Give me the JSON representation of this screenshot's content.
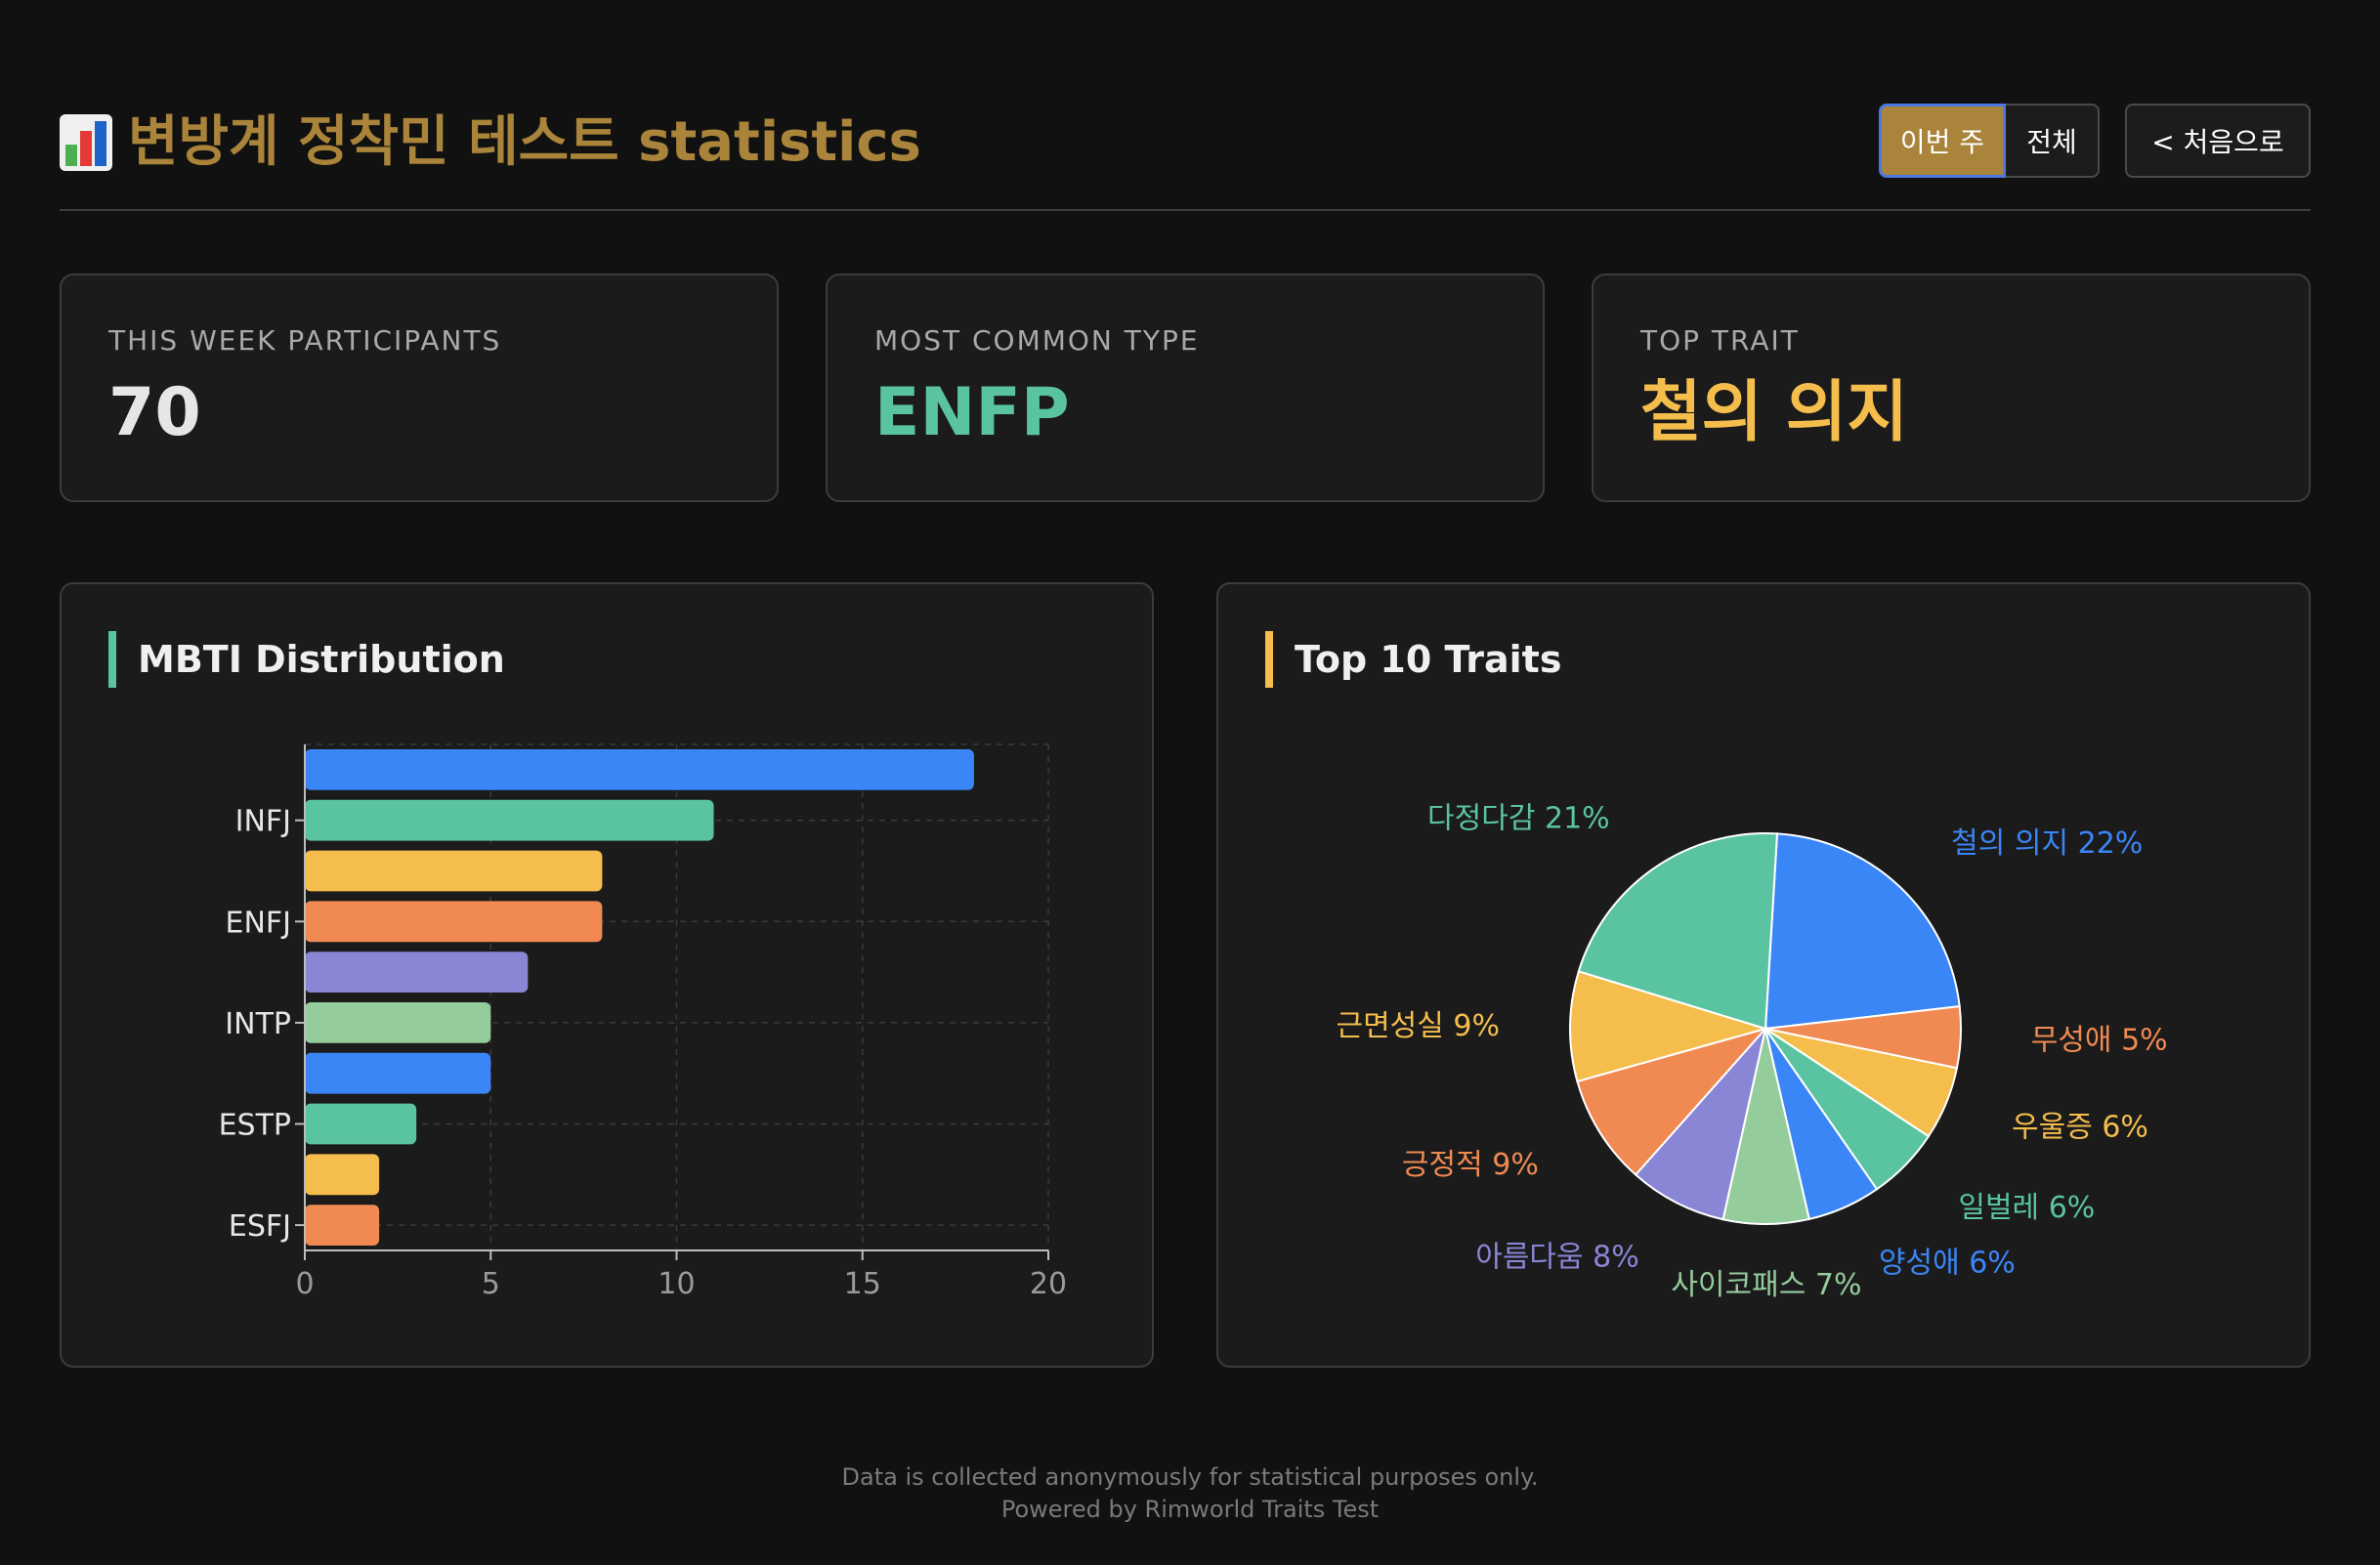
{
  "header": {
    "title": "변방계 정착민 테스트 statistics",
    "buttons": {
      "week": "이번 주",
      "all": "전체",
      "home": "< 처음으로"
    }
  },
  "cards": [
    {
      "label": "THIS WEEK PARTICIPANTS",
      "value": "70",
      "color": "#e6e6e6"
    },
    {
      "label": "MOST COMMON TYPE",
      "value": "ENFP",
      "color": "#5ac4a2"
    },
    {
      "label": "TOP TRAIT",
      "value": "철의 의지",
      "color": "#f5bd4c"
    }
  ],
  "mbti_panel": {
    "title": "MBTI Distribution"
  },
  "traits_panel": {
    "title": "Top 10 Traits"
  },
  "footer": {
    "line1": "Data is collected anonymously for statistical purposes only.",
    "line2": "Powered by Rimworld Traits Test"
  },
  "chart_data": [
    {
      "type": "bar",
      "orientation": "horizontal",
      "title": "MBTI Distribution",
      "categories": [
        "",
        "INFJ",
        "",
        "ENFJ",
        "",
        "INTP",
        "",
        "ESTP",
        "",
        "ESFJ"
      ],
      "values": [
        18,
        11,
        8,
        8,
        6,
        5,
        5,
        3,
        2,
        2
      ],
      "colors": [
        "#3b86f7",
        "#5ac4a2",
        "#f5bd4c",
        "#f08a52",
        "#8a86d6",
        "#94cc9c",
        "#3b86f7",
        "#5ac4a2",
        "#f5bd4c",
        "#f08a52"
      ],
      "xlim": [
        0,
        20
      ],
      "xticks": [
        0,
        5,
        10,
        15,
        20
      ],
      "grid": true
    },
    {
      "type": "pie",
      "title": "Top 10 Traits",
      "slices": [
        {
          "label": "철의 의지 22%",
          "value": 22,
          "color": "#3b86f7"
        },
        {
          "label": "무성애 5%",
          "value": 5,
          "color": "#f08a52"
        },
        {
          "label": "우울증 6%",
          "value": 6,
          "color": "#f5bd4c"
        },
        {
          "label": "일벌레 6%",
          "value": 6,
          "color": "#5ac4a2"
        },
        {
          "label": "양성애 6%",
          "value": 6,
          "color": "#3b86f7"
        },
        {
          "label": "사이코패스 7%",
          "value": 7,
          "color": "#94cc9c"
        },
        {
          "label": "아름다움 8%",
          "value": 8,
          "color": "#8a86d6"
        },
        {
          "label": "긍정적 9%",
          "value": 9,
          "color": "#f08a52"
        },
        {
          "label": "근면성실 9%",
          "value": 9,
          "color": "#f5bd4c"
        },
        {
          "label": "다정다감 21%",
          "value": 21,
          "color": "#5ac4a2"
        }
      ]
    }
  ]
}
